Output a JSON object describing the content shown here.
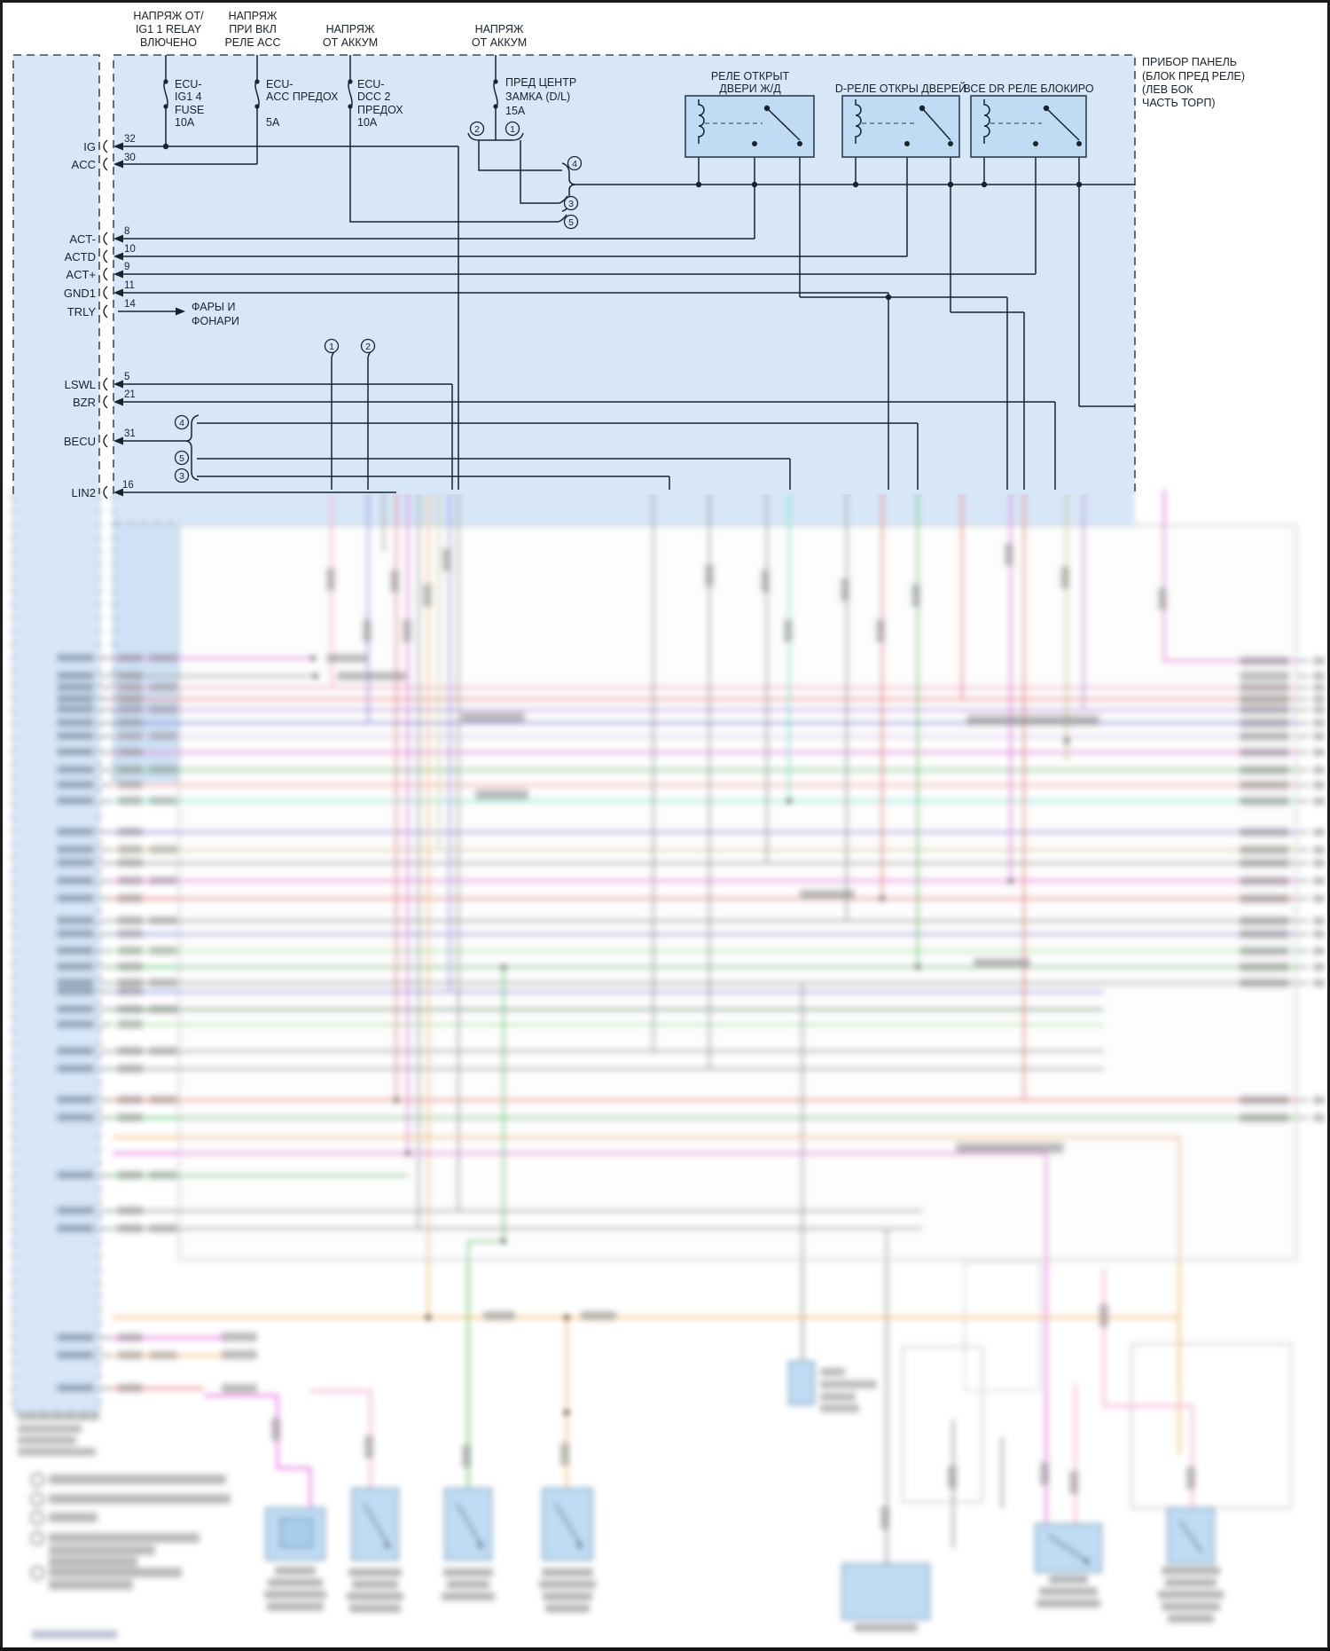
{
  "colors": {
    "page_bg": "#ffffff",
    "panel_fill": "#d7e7f8",
    "relay_fill": "#bfdcf4",
    "dash_border": "#3f4a52",
    "wire_black": "#17242e",
    "wire_magenta": "#e36bdb",
    "wire_pink": "#f2a7cc",
    "wire_violet": "#bd8bdc",
    "wire_blue": "#8d8ce0",
    "wire_green": "#5fc56b",
    "wire_red": "#e97777",
    "wire_cyan": "#6fe4d4",
    "wire_orange": "#f3bb72",
    "wire_gray": "#9c9c9c"
  },
  "top": {
    "headers": [
      {
        "lines": [
          "НАПРЯЖ ОТ/",
          "IG1 1 RELAY",
          "ВЛЮЧЕНО"
        ]
      },
      {
        "lines": [
          "НАПРЯЖ",
          "ПРИ ВКЛ",
          "РЕЛЕ ACC"
        ]
      },
      {
        "lines": [
          "НАПРЯЖ",
          "ОТ АККУМ"
        ]
      },
      {
        "lines": [
          "НАПРЯЖ",
          "ОТ АККУМ"
        ]
      }
    ],
    "fuses": [
      {
        "lines": [
          "ECU-",
          "IG1 4",
          "FUSE",
          "10A"
        ]
      },
      {
        "lines": [
          "ECU-",
          "ACC ПРЕДОХ",
          "5A"
        ]
      },
      {
        "lines": [
          "ECU-",
          "DCC 2",
          "ПРЕДОХ",
          "10A"
        ]
      },
      {
        "lines": [
          "ПРЕД ЦЕНТР",
          "ЗАМКА (D/L)",
          "15A"
        ]
      }
    ],
    "relays": [
      {
        "title_lines": [
          "РЕЛЕ ОТКРЫТ",
          "ДВЕРИ Ж/Д"
        ]
      },
      {
        "title_lines": [
          "D-РЕЛЕ ОТКРЫ ДВЕРЕЙ"
        ]
      },
      {
        "title_lines": [
          "ВСЕ DR РЕЛЕ БЛОКИРО"
        ]
      }
    ],
    "panel_note": {
      "lines": [
        "ПРИБОР ПАНЕЛЬ",
        "(БЛОК ПРЕД РЕЛЕ)",
        "(ЛЕВ БОК",
        "ЧАСТЬ ТОРП)"
      ]
    },
    "headlights_label": {
      "lines": [
        "ФАРЫ И",
        "ФОНАРИ"
      ]
    },
    "pins": [
      {
        "label": "IG",
        "num": "32"
      },
      {
        "label": "ACC",
        "num": "30"
      },
      {
        "label": "ACT-",
        "num": "8"
      },
      {
        "label": "ACTD",
        "num": "10"
      },
      {
        "label": "ACT+",
        "num": "9"
      },
      {
        "label": "GND1",
        "num": "11"
      },
      {
        "label": "TRLY",
        "num": "14"
      },
      {
        "label": "LSWL",
        "num": "5"
      },
      {
        "label": "BZR",
        "num": "21"
      },
      {
        "label": "BECU",
        "num": "31"
      },
      {
        "label": "LIN2",
        "num": "16"
      }
    ],
    "refs": {
      "r1": "1",
      "r2": "2",
      "r3": "3",
      "r4": "4",
      "r5": "5"
    }
  }
}
